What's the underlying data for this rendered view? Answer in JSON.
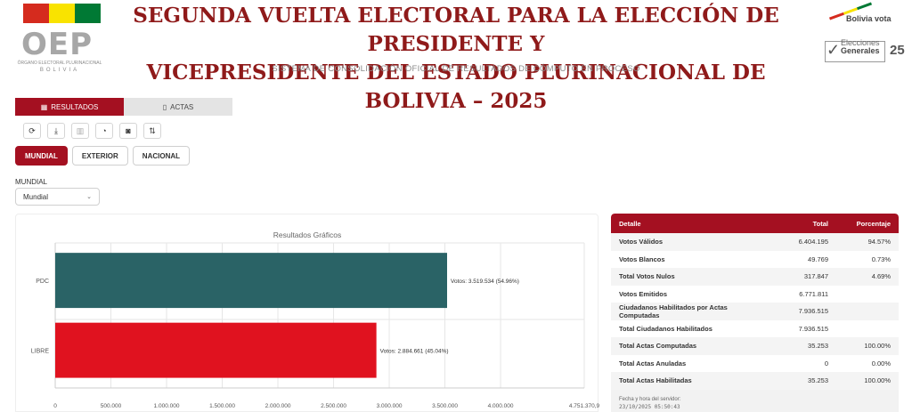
{
  "header": {
    "org_logo": "OEP",
    "org_name": "ÓRGANO ELECTORAL PLURINACIONAL",
    "org_country": "BOLIVIA",
    "title_line1": "SEGUNDA VUELTA ELECTORAL PARA LA ELECCIÓN DE PRESIDENTE Y",
    "title_line2": "VICEPRESIDENTE DEL ESTADO PLURINACIONAL DE BOLIVIA – 2025",
    "subtitle": "SISTEMA DE CONSOLIDACIÓN OFICIAL DE RESULTADOS DE CÓMPUTO EN PROCESO",
    "right_logo_top": "Bolivia vota",
    "right_logo_line1": "Elecciones",
    "right_logo_line2": "Generales",
    "right_logo_num": "25"
  },
  "colors": {
    "brand": "#a41021",
    "title": "#8f1a1a",
    "flag": [
      "#d52b1e",
      "#f9e300",
      "#007934"
    ]
  },
  "tabs": [
    {
      "label": "RESULTADOS",
      "icon": "bar-chart-icon",
      "active": true
    },
    {
      "label": "ACTAS",
      "icon": "document-icon",
      "active": false
    }
  ],
  "toolbar": [
    "refresh-icon",
    "download-icon",
    "bar-chart-icon",
    "pie-chart-icon",
    "camera-icon",
    "sort-icon"
  ],
  "scopes": [
    {
      "label": "MUNDIAL",
      "active": true
    },
    {
      "label": "EXTERIOR",
      "active": false
    },
    {
      "label": "NACIONAL",
      "active": false
    }
  ],
  "filter": {
    "label": "MUNDIAL",
    "selected": "Mundial"
  },
  "chart_data": {
    "type": "bar",
    "orientation": "horizontal",
    "title": "Resultados Gráficos",
    "categories": [
      "PDC",
      "LIBRE"
    ],
    "values": [
      3519534,
      2884661
    ],
    "colors": [
      "#2a6366",
      "#e0121f"
    ],
    "data_labels": [
      "Votos: 3.519.534 (54.96%)",
      "Votos: 2.884.661 (45.04%)"
    ],
    "xlim": [
      0,
      4751370.9
    ],
    "xticks": [
      0,
      500000,
      1000000,
      1500000,
      2000000,
      2500000,
      3000000,
      3500000,
      4000000,
      4751370.9
    ],
    "xtick_labels": [
      "0",
      "500.000",
      "1.000.000",
      "1.500.000",
      "2.000.000",
      "2.500.000",
      "3.000.000",
      "3.500.000",
      "4.000.000",
      "4.751.370,9"
    ],
    "grid": true
  },
  "table": {
    "headers": [
      "Detalle",
      "Total",
      "Porcentaje"
    ],
    "rows": [
      {
        "label": "Votos Válidos",
        "total": "6.404.195",
        "pct": "94.57%"
      },
      {
        "label": "Votos Blancos",
        "total": "49.769",
        "pct": "0.73%"
      },
      {
        "label": "Total Votos Nulos",
        "total": "317.847",
        "pct": "4.69%"
      },
      {
        "label": "Votos Emitidos",
        "total": "6.771.811",
        "pct": ""
      },
      {
        "label": "Ciudadanos Habilitados por Actas Computadas",
        "total": "7.936.515",
        "pct": ""
      },
      {
        "label": "Total Ciudadanos Habilitados",
        "total": "7.936.515",
        "pct": ""
      },
      {
        "label": "Total Actas Computadas",
        "total": "35.253",
        "pct": "100.00%"
      },
      {
        "label": "Total Actas Anuladas",
        "total": "0",
        "pct": "0.00%"
      },
      {
        "label": "Total Actas Habilitadas",
        "total": "35.253",
        "pct": "100.00%"
      }
    ],
    "footer_label": "Fecha y hora del servidor:",
    "footer_time": "23/10/2025 05:50:43"
  }
}
